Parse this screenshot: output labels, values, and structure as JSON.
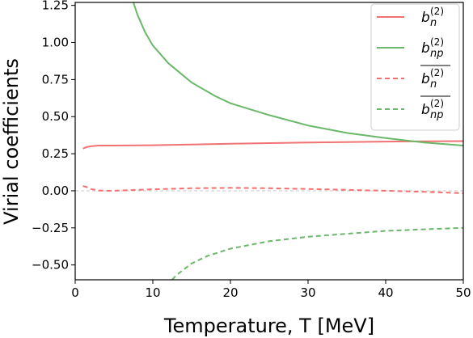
{
  "chart_data": {
    "type": "line",
    "xlabel": "Temperature, T [MeV]",
    "ylabel": "Virial coefficients",
    "xlim": [
      0,
      50
    ],
    "ylim": [
      -0.6,
      1.27
    ],
    "xticks": [
      0,
      10,
      20,
      30,
      40,
      50
    ],
    "yticks": [
      -0.5,
      -0.25,
      0.0,
      0.25,
      0.5,
      0.75,
      1.0,
      1.25
    ],
    "xtick_labels": [
      "0",
      "10",
      "20",
      "30",
      "40",
      "50"
    ],
    "ytick_labels": [
      "−0.50",
      "−0.25",
      "0.00",
      "0.25",
      "0.50",
      "0.75",
      "1.00",
      "1.25"
    ],
    "zero_line": true,
    "legend_position": "top-right",
    "series": [
      {
        "name": "b_n^(2)",
        "color": "#f07272",
        "style": "solid",
        "x": [
          1,
          1.5,
          2,
          3,
          5,
          10,
          20,
          30,
          40,
          50
        ],
        "y": [
          0.285,
          0.295,
          0.3,
          0.305,
          0.305,
          0.307,
          0.317,
          0.325,
          0.332,
          0.335
        ]
      },
      {
        "name": "b_np^(2)",
        "color": "#6ab86a",
        "style": "solid",
        "x": [
          7.5,
          8,
          9,
          10,
          12,
          15,
          18,
          20,
          25,
          30,
          35,
          40,
          45,
          50
        ],
        "y": [
          1.27,
          1.19,
          1.07,
          0.98,
          0.86,
          0.73,
          0.64,
          0.59,
          0.51,
          0.44,
          0.39,
          0.355,
          0.325,
          0.305
        ]
      },
      {
        "name": "b̄_n^(2)",
        "color": "#f07272",
        "style": "dashed",
        "x": [
          1,
          1.5,
          2,
          3,
          4,
          5,
          8,
          10,
          15,
          20,
          25,
          30,
          35,
          40,
          45,
          50
        ],
        "y": [
          0.032,
          0.025,
          0.012,
          0.002,
          0.0,
          0.0,
          0.006,
          0.01,
          0.017,
          0.02,
          0.017,
          0.012,
          0.006,
          0.0,
          -0.007,
          -0.016
        ]
      },
      {
        "name": "b̄_np^(2)",
        "color": "#6ab86a",
        "style": "dashed",
        "x": [
          12.5,
          13,
          14,
          15,
          17,
          20,
          25,
          30,
          35,
          40,
          45,
          50
        ],
        "y": [
          -0.6,
          -0.57,
          -0.53,
          -0.49,
          -0.44,
          -0.39,
          -0.34,
          -0.31,
          -0.29,
          -0.27,
          -0.26,
          -0.25
        ]
      }
    ]
  }
}
